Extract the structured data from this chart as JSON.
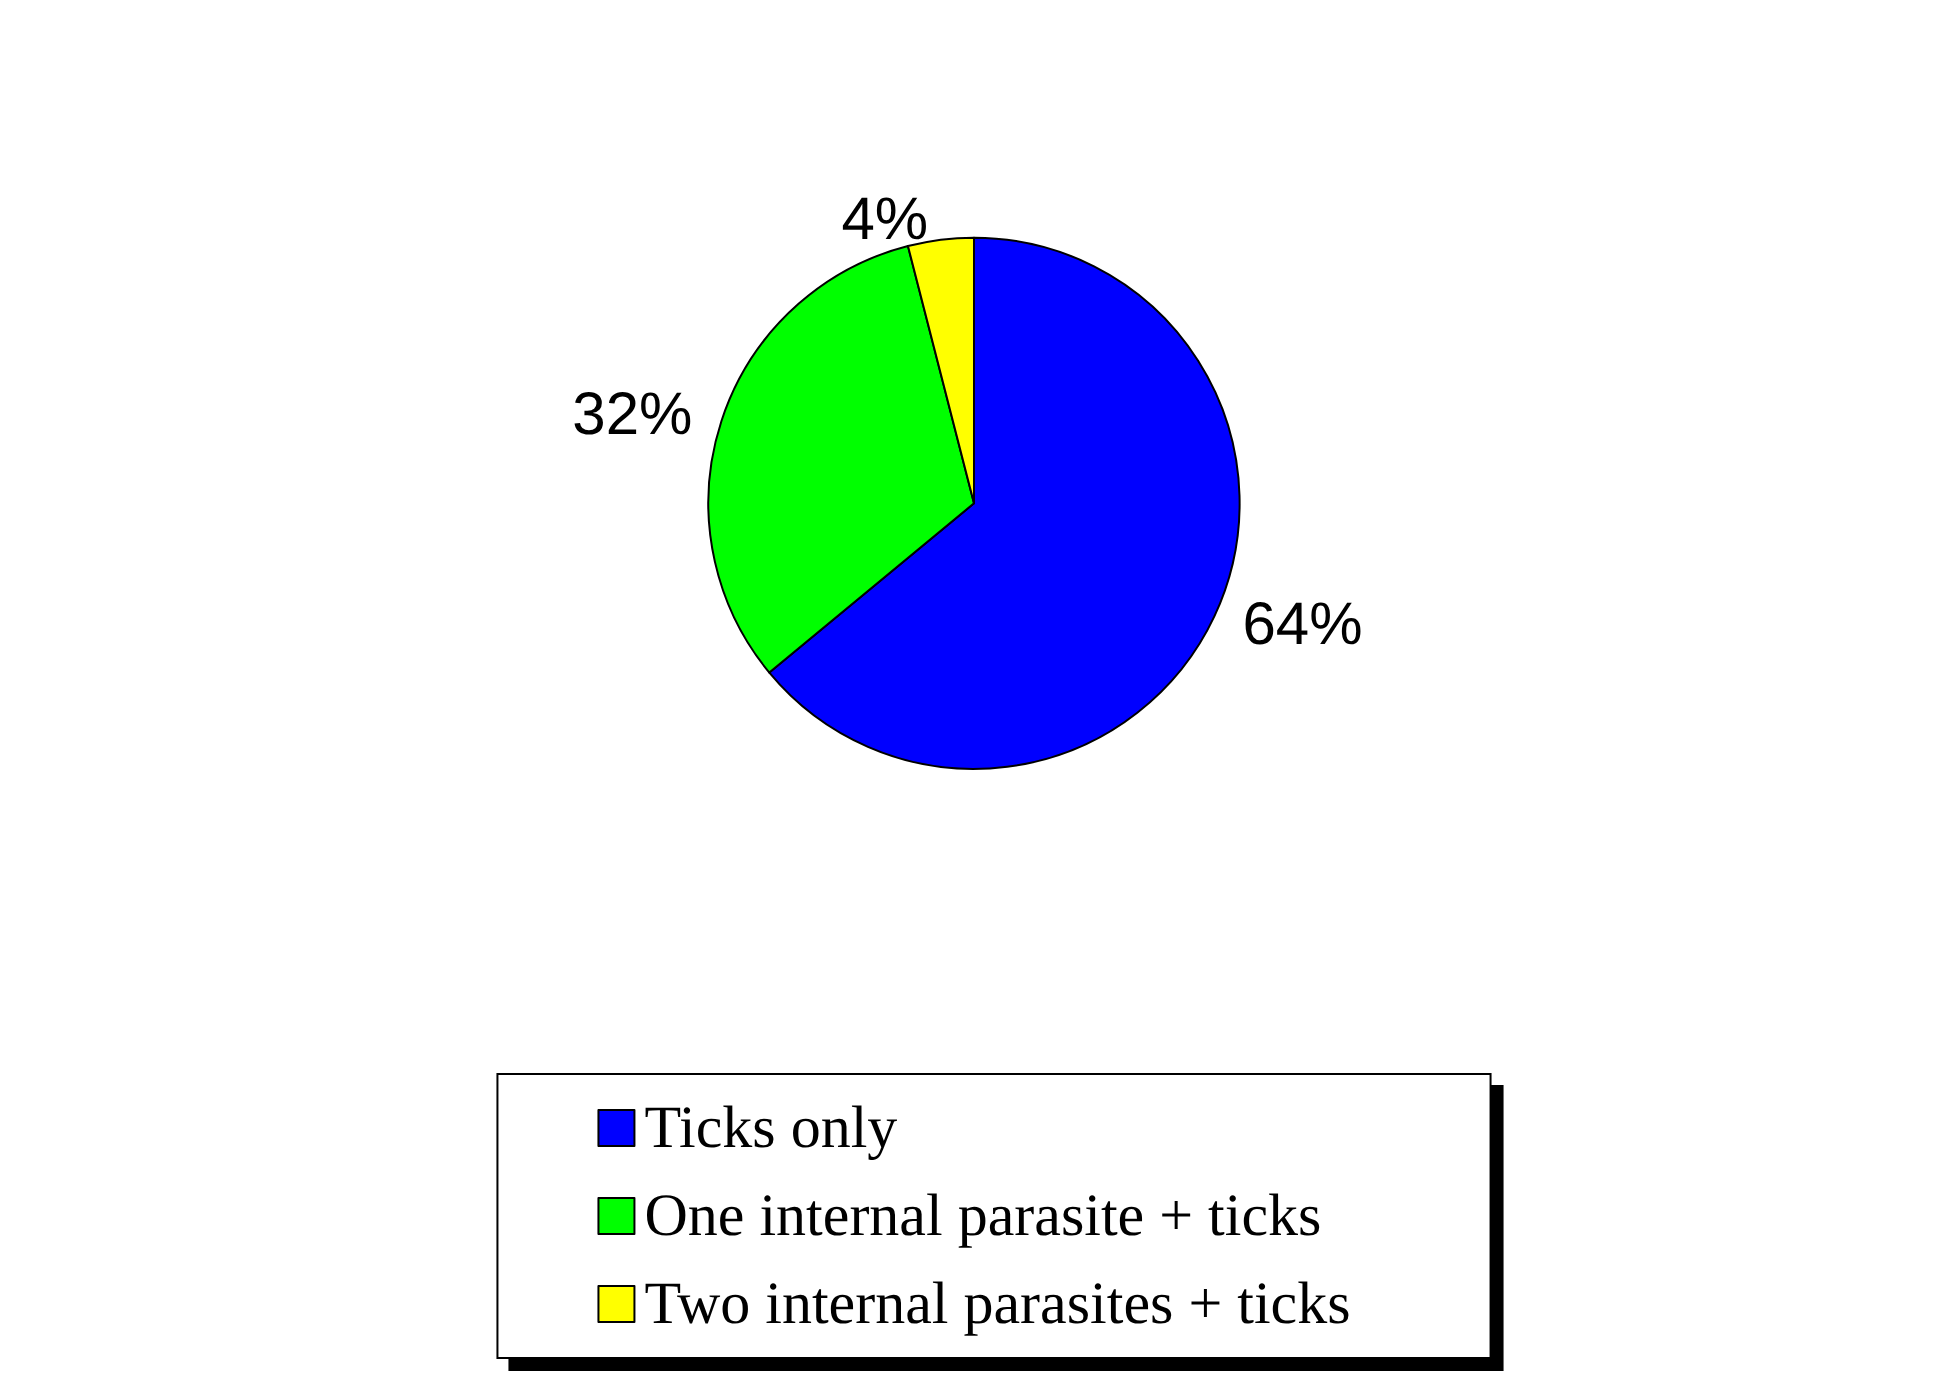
{
  "chart_data": {
    "type": "pie",
    "categories": [
      "Ticks only",
      "One internal parasite + ticks",
      "Two internal parasites + ticks"
    ],
    "values": [
      64,
      32,
      4
    ],
    "colors": [
      "#0000ff",
      "#00ff00",
      "#ffff00"
    ],
    "value_labels": [
      "64%",
      "32%",
      "4%"
    ],
    "legend": "bottom"
  }
}
